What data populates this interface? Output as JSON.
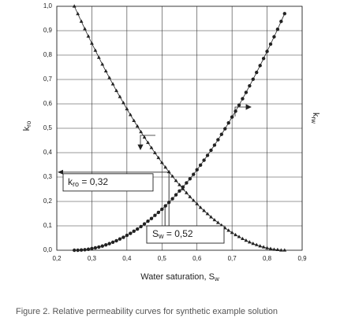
{
  "chart_data": {
    "type": "line",
    "x_label": {
      "main": "Water saturation, S",
      "sub": "w"
    },
    "y_label": {
      "main": "k",
      "sub": "ro"
    },
    "y2_label": {
      "main": "k",
      "sub": "rw"
    },
    "caption": "Figure 2. Relative permeability curves for synthetic example solution",
    "xlim": [
      0.2,
      0.9
    ],
    "ylim": [
      0,
      1
    ],
    "grid": true,
    "xticks": [
      {
        "value": 0.2,
        "label": "0,2"
      },
      {
        "value": 0.3,
        "label": "0,3"
      },
      {
        "value": 0.4,
        "label": "0,4"
      },
      {
        "value": 0.5,
        "label": "0,5"
      },
      {
        "value": 0.6,
        "label": "0,6"
      },
      {
        "value": 0.7,
        "label": "0,7"
      },
      {
        "value": 0.8,
        "label": "0,8"
      },
      {
        "value": 0.9,
        "label": "0,9"
      }
    ],
    "yticks": [
      {
        "value": 0,
        "label": "0,0"
      },
      {
        "value": 0.1,
        "label": "0,1"
      },
      {
        "value": 0.2,
        "label": "0,2"
      },
      {
        "value": 0.3,
        "label": "0,3"
      },
      {
        "value": 0.4,
        "label": "0,4"
      },
      {
        "value": 0.5,
        "label": "0,5"
      },
      {
        "value": 0.6,
        "label": "0,6"
      },
      {
        "value": 0.7,
        "label": "0,7"
      },
      {
        "value": 0.8,
        "label": "0,8"
      },
      {
        "value": 0.9,
        "label": "0,9"
      },
      {
        "value": 1,
        "label": "1,0"
      }
    ],
    "x": [
      0.25,
      0.26,
      0.27,
      0.28,
      0.29,
      0.3,
      0.31,
      0.32,
      0.33,
      0.34,
      0.35,
      0.36,
      0.37,
      0.38,
      0.39,
      0.4,
      0.41,
      0.42,
      0.43,
      0.44,
      0.45,
      0.46,
      0.47,
      0.48,
      0.49,
      0.5,
      0.51,
      0.52,
      0.53,
      0.54,
      0.55,
      0.56,
      0.57,
      0.58,
      0.59,
      0.6,
      0.61,
      0.62,
      0.63,
      0.64,
      0.65,
      0.66,
      0.67,
      0.68,
      0.69,
      0.7,
      0.71,
      0.72,
      0.73,
      0.74,
      0.75,
      0.76,
      0.77,
      0.78,
      0.79,
      0.8,
      0.81,
      0.82,
      0.83,
      0.84,
      0.85
    ],
    "series": [
      {
        "marker": "triangle",
        "color": "#222222",
        "values": [
          1,
          0.969,
          0.938,
          0.907,
          0.877,
          0.848,
          0.819,
          0.79,
          0.762,
          0.734,
          0.707,
          0.681,
          0.654,
          0.629,
          0.604,
          0.579,
          0.555,
          0.531,
          0.508,
          0.485,
          0.463,
          0.441,
          0.42,
          0.399,
          0.379,
          0.359,
          0.34,
          0.321,
          0.303,
          0.285,
          0.268,
          0.251,
          0.235,
          0.219,
          0.204,
          0.19,
          0.175,
          0.162,
          0.149,
          0.136,
          0.124,
          0.113,
          0.102,
          0.091,
          0.081,
          0.072,
          0.063,
          0.055,
          0.047,
          0.04,
          0.033,
          0.027,
          0.022,
          0.017,
          0.013,
          0.009,
          0.006,
          0.003,
          0.002,
          0,
          0
        ]
      },
      {
        "marker": "circle",
        "color": "#222222",
        "values": [
          0,
          0,
          0.001,
          0.002,
          0.004,
          0.007,
          0.01,
          0.013,
          0.017,
          0.022,
          0.027,
          0.033,
          0.039,
          0.046,
          0.053,
          0.061,
          0.069,
          0.078,
          0.087,
          0.097,
          0.108,
          0.119,
          0.13,
          0.143,
          0.155,
          0.168,
          0.182,
          0.196,
          0.211,
          0.227,
          0.243,
          0.259,
          0.276,
          0.293,
          0.311,
          0.33,
          0.349,
          0.369,
          0.389,
          0.41,
          0.431,
          0.453,
          0.475,
          0.498,
          0.522,
          0.546,
          0.57,
          0.595,
          0.621,
          0.647,
          0.674,
          0.701,
          0.729,
          0.757,
          0.786,
          0.815,
          0.845,
          0.875,
          0.906,
          0.938,
          0.97
        ]
      }
    ],
    "annotations": [
      {
        "main": "k",
        "sub": "ro",
        "label": " = 0,32",
        "value": 0.32
      },
      {
        "main": "S",
        "sub": "w",
        "label": " = 0,52",
        "value": 0.52
      }
    ]
  }
}
